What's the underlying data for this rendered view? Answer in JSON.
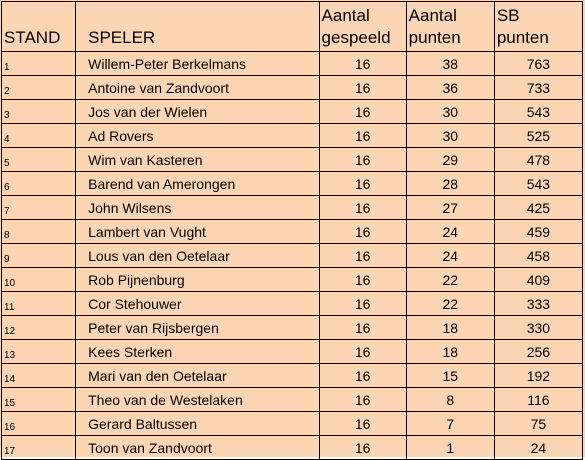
{
  "headers": {
    "stand": "STAND",
    "speler": "SPELER",
    "gespeeld_l1": "Aantal",
    "gespeeld_l2": "gespeeld",
    "punten_l1": "Aantal",
    "punten_l2": "punten",
    "sb_l1": "SB",
    "sb_l2": "punten"
  },
  "rows": [
    {
      "stand": "1",
      "speler": "Willem-Peter Berkelmans",
      "gespeeld": "16",
      "punten": "38",
      "sb": "763"
    },
    {
      "stand": "2",
      "speler": "Antoine van Zandvoort",
      "gespeeld": "16",
      "punten": "36",
      "sb": "733"
    },
    {
      "stand": "3",
      "speler": "Jos van der Wielen",
      "gespeeld": "16",
      "punten": "30",
      "sb": "543"
    },
    {
      "stand": "4",
      "speler": "Ad Rovers",
      "gespeeld": "16",
      "punten": "30",
      "sb": "525"
    },
    {
      "stand": "5",
      "speler": "Wim van Kasteren",
      "gespeeld": "16",
      "punten": "29",
      "sb": "478"
    },
    {
      "stand": "6",
      "speler": "Barend van Amerongen",
      "gespeeld": "16",
      "punten": "28",
      "sb": "543"
    },
    {
      "stand": "7",
      "speler": "John Wilsens",
      "gespeeld": "16",
      "punten": "27",
      "sb": "425"
    },
    {
      "stand": "8",
      "speler": "Lambert van Vught",
      "gespeeld": "16",
      "punten": "24",
      "sb": "459"
    },
    {
      "stand": "9",
      "speler": "Lous van den Oetelaar",
      "gespeeld": "16",
      "punten": "24",
      "sb": "458"
    },
    {
      "stand": "10",
      "speler": "Rob Pijnenburg",
      "gespeeld": "16",
      "punten": "22",
      "sb": "409"
    },
    {
      "stand": "11",
      "speler": "Cor Stehouwer",
      "gespeeld": "16",
      "punten": "22",
      "sb": "333"
    },
    {
      "stand": "12",
      "speler": "Peter van Rijsbergen",
      "gespeeld": "16",
      "punten": "18",
      "sb": "330"
    },
    {
      "stand": "13",
      "speler": "Kees Sterken",
      "gespeeld": "16",
      "punten": "18",
      "sb": "256"
    },
    {
      "stand": "14",
      "speler": "Mari van den Oetelaar",
      "gespeeld": "16",
      "punten": "15",
      "sb": "192"
    },
    {
      "stand": "15",
      "speler": "Theo van de Westelaken",
      "gespeeld": "16",
      "punten": "8",
      "sb": "116"
    },
    {
      "stand": "16",
      "speler": "Gerard Baltussen",
      "gespeeld": "16",
      "punten": "7",
      "sb": "75"
    },
    {
      "stand": "17",
      "speler": "Toon van Zandvoort",
      "gespeeld": "16",
      "punten": "1",
      "sb": "24"
    }
  ],
  "colors": {
    "background": "#fcd5b4",
    "border": "#000000",
    "text": "#000000"
  }
}
